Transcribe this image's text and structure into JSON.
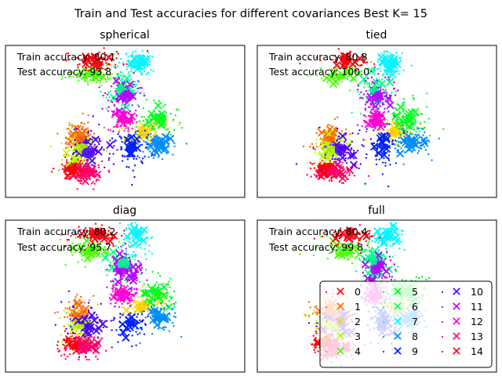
{
  "figure": {
    "suptitle": "Train and Test accuracies for different covariances Best K= 15"
  },
  "legend": {
    "labels": [
      "0",
      "1",
      "2",
      "3",
      "4",
      "5",
      "6",
      "7",
      "8",
      "9",
      "10",
      "11",
      "12",
      "13",
      "14"
    ]
  },
  "colors": {
    "classes": [
      "#ff0000",
      "#ff6a00",
      "#ffd400",
      "#b4ff00",
      "#49ff00",
      "#00ff20",
      "#00ff8c",
      "#00f7ff",
      "#008cff",
      "#0020ff",
      "#4900ff",
      "#b400ff",
      "#ff00d4",
      "#ff006a",
      "#ff0010"
    ]
  },
  "chart_data": [
    {
      "type": "scatter",
      "title": "spherical",
      "annotations": [
        "Train accuracy: 80.1",
        "Test accuracy: 93.8"
      ],
      "train_accuracy": 80.1,
      "test_accuracy": 93.8,
      "axes": "off",
      "legend": false
    },
    {
      "type": "scatter",
      "title": "tied",
      "annotations": [
        "Train accuracy: 80.8",
        "Test accuracy: 100.0"
      ],
      "train_accuracy": 80.8,
      "test_accuracy": 100.0,
      "axes": "off",
      "legend": false
    },
    {
      "type": "scatter",
      "title": "diag",
      "annotations": [
        "Train accuracy: 80.2",
        "Test accuracy: 95.7"
      ],
      "train_accuracy": 80.2,
      "test_accuracy": 95.7,
      "axes": "off",
      "legend": false
    },
    {
      "type": "scatter",
      "title": "full",
      "annotations": [
        "Train accuracy: 80.4",
        "Test accuracy: 99.8"
      ],
      "train_accuracy": 80.4,
      "test_accuracy": 99.8,
      "axes": "off",
      "legend": "lower-right",
      "legend_columns": 3
    }
  ]
}
